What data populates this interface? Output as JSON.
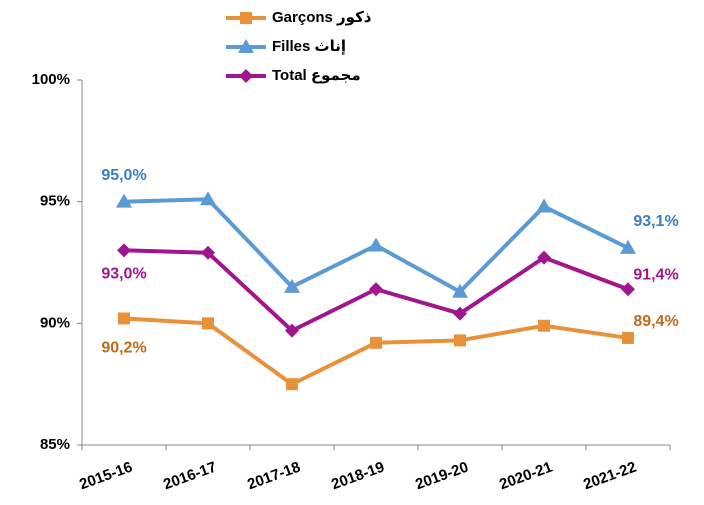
{
  "chart_data": {
    "type": "line",
    "categories": [
      "2015-16",
      "2016-17",
      "2017-18",
      "2018-19",
      "2019-20",
      "2020-21",
      "2021-22"
    ],
    "series": [
      {
        "name": "Garçons  ذكور",
        "color": "#e8913a",
        "marker": "square",
        "values": [
          90.2,
          90.0,
          87.5,
          89.2,
          89.3,
          89.9,
          89.4
        ],
        "value_labels": [
          "90,2%",
          null,
          null,
          null,
          null,
          null,
          "89,4%"
        ]
      },
      {
        "name": "Filles  إناث",
        "color": "#5b9bd5",
        "marker": "triangle",
        "values": [
          95.0,
          95.1,
          91.5,
          93.2,
          91.3,
          94.8,
          93.1
        ],
        "value_labels": [
          "95,0%",
          null,
          null,
          null,
          null,
          null,
          "93,1%"
        ]
      },
      {
        "name": "Total  مجموع",
        "color": "#a0168f",
        "marker": "diamond",
        "values": [
          93.0,
          92.9,
          89.7,
          91.4,
          90.4,
          92.7,
          91.4
        ],
        "value_labels": [
          "93,0%",
          null,
          null,
          null,
          null,
          null,
          "91,4%"
        ]
      }
    ],
    "ylim": [
      85,
      100
    ],
    "yticks": [
      {
        "value": 85,
        "label": "85%"
      },
      {
        "value": 90,
        "label": "90%"
      },
      {
        "value": 95,
        "label": "95%"
      },
      {
        "value": 100,
        "label": "100%"
      }
    ],
    "legend": "top"
  }
}
